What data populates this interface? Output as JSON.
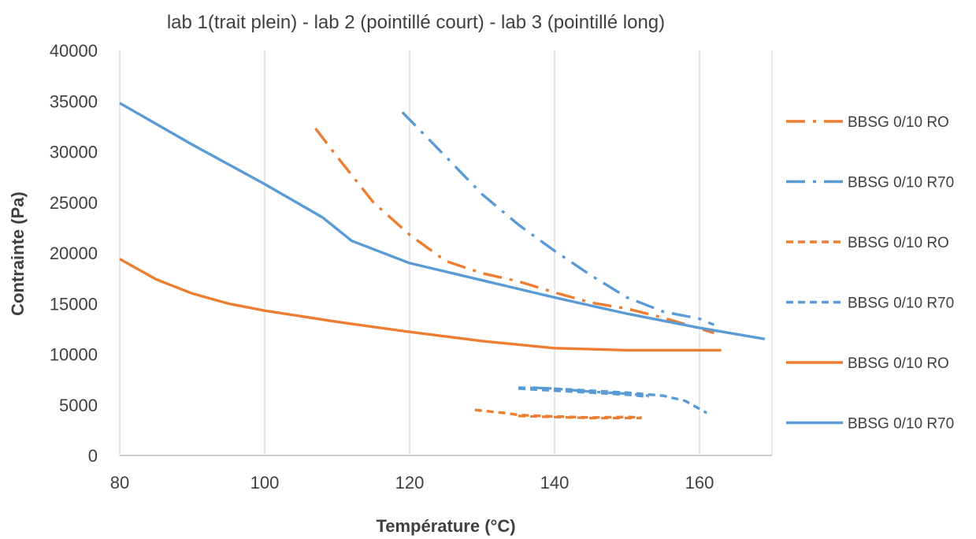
{
  "chart_data": {
    "type": "line",
    "title": "lab 1(trait plein) - lab 2 (pointillé court) - lab 3 (pointillé long)",
    "xlabel": "Température (°C)",
    "ylabel": "Contrainte (Pa)",
    "xlim": [
      80,
      170
    ],
    "ylim": [
      0,
      40000
    ],
    "xticks": [
      "80",
      "100",
      "120",
      "140",
      "160"
    ],
    "yticks": [
      "0",
      "5000",
      "10000",
      "15000",
      "20000",
      "25000",
      "30000",
      "35000",
      "40000"
    ],
    "grid": "vertical",
    "legend_position": "right",
    "series": [
      {
        "name": "BBSG 0/10 RO",
        "color": "#ED7D31",
        "style": "dashdot",
        "points": [
          [
            107,
            32300
          ],
          [
            110,
            29500
          ],
          [
            115,
            25000
          ],
          [
            120,
            21800
          ],
          [
            125,
            19200
          ],
          [
            130,
            18000
          ],
          [
            135,
            17200
          ],
          [
            140,
            16100
          ],
          [
            145,
            15100
          ],
          [
            150,
            14500
          ],
          [
            155,
            13600
          ],
          [
            162,
            12100
          ]
        ]
      },
      {
        "name": "BBSG 0/10 R70",
        "color": "#5B9BD5",
        "style": "dashdot",
        "points": [
          [
            119,
            33900
          ],
          [
            125,
            29500
          ],
          [
            130,
            25800
          ],
          [
            135,
            22800
          ],
          [
            140,
            20200
          ],
          [
            145,
            17800
          ],
          [
            150,
            15600
          ],
          [
            155,
            14200
          ],
          [
            160,
            13500
          ],
          [
            162,
            12900
          ]
        ]
      },
      {
        "name": "BBSG 0/10 RO",
        "color": "#ED7D31",
        "style": "dashed",
        "points": [
          [
            129,
            4500
          ],
          [
            133,
            4200
          ],
          [
            135,
            4000
          ],
          [
            140,
            3850
          ],
          [
            145,
            3750
          ],
          [
            150,
            3800
          ],
          [
            152,
            3750
          ]
        ]
      },
      {
        "name": "BBSG 0/10 R70",
        "color": "#5B9BD5",
        "style": "dashed",
        "points": [
          [
            135,
            6700
          ],
          [
            140,
            6600
          ],
          [
            145,
            6400
          ],
          [
            150,
            6200
          ],
          [
            155,
            5900
          ],
          [
            158,
            5400
          ],
          [
            160,
            4600
          ],
          [
            161,
            4200
          ]
        ]
      },
      {
        "name": "BBSG 0/10 RO",
        "color": "#ED7D31",
        "style": "solid",
        "points": [
          [
            80,
            19400
          ],
          [
            85,
            17400
          ],
          [
            90,
            16000
          ],
          [
            95,
            15000
          ],
          [
            100,
            14300
          ],
          [
            110,
            13200
          ],
          [
            120,
            12200
          ],
          [
            130,
            11300
          ],
          [
            140,
            10600
          ],
          [
            150,
            10400
          ],
          [
            160,
            10400
          ],
          [
            163,
            10400
          ]
        ]
      },
      {
        "name": "BBSG 0/10 R70",
        "color": "#5B9BD5",
        "style": "solid",
        "points": [
          [
            80,
            34800
          ],
          [
            90,
            30700
          ],
          [
            100,
            26800
          ],
          [
            108,
            23500
          ],
          [
            112,
            21200
          ],
          [
            120,
            19000
          ],
          [
            130,
            17300
          ],
          [
            140,
            15600
          ],
          [
            150,
            14000
          ],
          [
            160,
            12600
          ],
          [
            169,
            11500
          ]
        ]
      }
    ],
    "extra_overlays": [
      {
        "color": "#5B9BD5",
        "style": "dashed",
        "points": [
          [
            135,
            6600
          ],
          [
            140,
            6400
          ],
          [
            145,
            6200
          ],
          [
            150,
            6000
          ],
          [
            153,
            5800
          ]
        ]
      },
      {
        "color": "#5B9BD5",
        "style": "dashdot",
        "points": [
          [
            137,
            6700
          ],
          [
            140,
            6600
          ],
          [
            145,
            6300
          ],
          [
            150,
            6100
          ],
          [
            153,
            5900
          ]
        ]
      },
      {
        "color": "#ED7D31",
        "style": "dashed",
        "points": [
          [
            135,
            3900
          ],
          [
            140,
            3800
          ],
          [
            145,
            3700
          ],
          [
            150,
            3700
          ],
          [
            152,
            3700
          ]
        ]
      }
    ]
  }
}
